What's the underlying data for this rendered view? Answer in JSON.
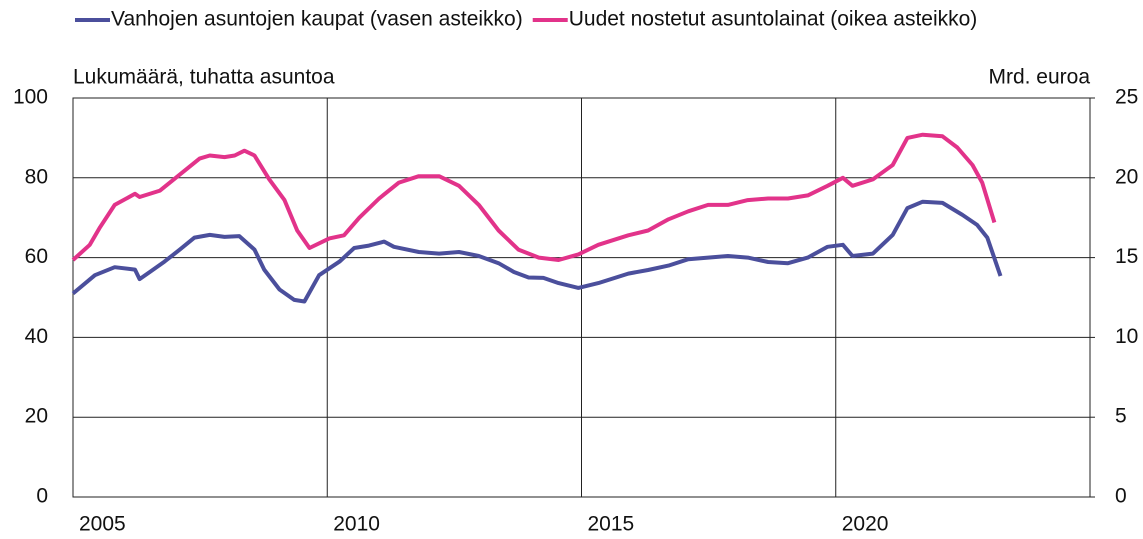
{
  "chart_data": {
    "type": "line",
    "legend_position": "top",
    "y_label": "Lukumäärä, tuhatta asuntoa",
    "y2_label": "Mrd. euroa",
    "xlim": [
      2005,
      2025
    ],
    "xticks": [
      2005,
      2010,
      2015,
      2020
    ],
    "ylim": [
      0,
      100
    ],
    "yticks": [
      0,
      20,
      40,
      60,
      80,
      100
    ],
    "y2lim": [
      0,
      25
    ],
    "y2ticks": [
      0,
      5,
      10,
      15,
      20,
      25
    ],
    "grid": true,
    "series": [
      {
        "name": "Vanhojen asuntojen kaupat (vasen asteikko)",
        "color": "#4b4f9c",
        "axis": "y",
        "x": [
          2005.0,
          2005.43,
          2005.82,
          2006.22,
          2006.31,
          2006.51,
          2006.8,
          2007.1,
          2007.39,
          2007.69,
          2007.98,
          2008.27,
          2008.57,
          2008.76,
          2009.06,
          2009.35,
          2009.55,
          2009.84,
          2010.24,
          2010.53,
          2010.82,
          2011.12,
          2011.31,
          2011.8,
          2012.2,
          2012.59,
          2012.98,
          2013.37,
          2013.67,
          2013.96,
          2014.25,
          2014.55,
          2014.94,
          2015.33,
          2015.92,
          2016.31,
          2016.71,
          2017.1,
          2017.49,
          2017.88,
          2018.27,
          2018.67,
          2019.06,
          2019.45,
          2019.84,
          2020.14,
          2020.33,
          2020.73,
          2021.12,
          2021.41,
          2021.71,
          2022.1,
          2022.49,
          2022.78,
          2022.98,
          2023.24
        ],
        "values": [
          51,
          55.6,
          57.6,
          57,
          54.6,
          56.4,
          59,
          62,
          65,
          65.7,
          65.2,
          65.4,
          62,
          57,
          52,
          49.4,
          49,
          55.6,
          59,
          62.4,
          63,
          64,
          62.7,
          61.4,
          61,
          61.4,
          60.4,
          58.6,
          56.4,
          55,
          54.9,
          53.6,
          52.4,
          53.6,
          56,
          56.9,
          58,
          59.6,
          60,
          60.4,
          60,
          58.9,
          58.6,
          60,
          62.7,
          63.2,
          60.4,
          61,
          65.7,
          72.4,
          74,
          73.7,
          70.7,
          68.2,
          65,
          55.4
        ]
      },
      {
        "name": "Uudet nostetut asuntolainat (oikea asteikko)",
        "color": "#e2338a",
        "axis": "y2",
        "x": [
          2005.0,
          2005.33,
          2005.53,
          2005.82,
          2006.22,
          2006.31,
          2006.71,
          2007.1,
          2007.49,
          2007.69,
          2007.98,
          2008.18,
          2008.37,
          2008.57,
          2008.86,
          2009.16,
          2009.41,
          2009.65,
          2010.04,
          2010.33,
          2010.63,
          2011.02,
          2011.41,
          2011.8,
          2012.2,
          2012.59,
          2012.98,
          2013.37,
          2013.76,
          2014.16,
          2014.55,
          2014.94,
          2015.33,
          2015.92,
          2016.31,
          2016.71,
          2017.1,
          2017.49,
          2017.88,
          2018.27,
          2018.67,
          2019.06,
          2019.45,
          2019.84,
          2020.14,
          2020.33,
          2020.73,
          2021.12,
          2021.41,
          2021.71,
          2022.1,
          2022.39,
          2022.69,
          2022.88,
          2023.12
        ],
        "values": [
          14.85,
          15.8,
          16.9,
          18.3,
          19.0,
          18.8,
          19.2,
          20.2,
          21.2,
          21.4,
          21.3,
          21.4,
          21.7,
          21.4,
          19.9,
          18.6,
          16.7,
          15.6,
          16.2,
          16.4,
          17.5,
          18.7,
          19.7,
          20.1,
          20.1,
          19.5,
          18.3,
          16.7,
          15.5,
          15.0,
          14.85,
          15.2,
          15.8,
          16.4,
          16.7,
          17.4,
          17.9,
          18.3,
          18.3,
          18.6,
          18.7,
          18.7,
          18.9,
          19.5,
          20.0,
          19.5,
          19.9,
          20.8,
          22.5,
          22.7,
          22.6,
          21.9,
          20.8,
          19.7,
          17.2
        ]
      }
    ]
  }
}
